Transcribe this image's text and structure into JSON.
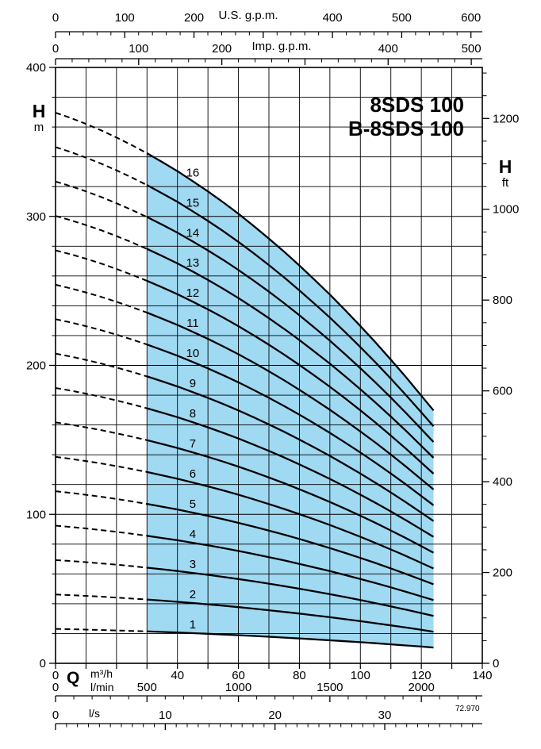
{
  "title": {
    "line1": "8SDS 100",
    "line2": "B-8SDS 100"
  },
  "watermark": "72.970",
  "colors": {
    "region_fill": "#a0d9f2",
    "line": "#000000",
    "background": "#ffffff"
  },
  "labels": {
    "head_symbol": "H",
    "head_unit_m": "m",
    "head_unit_ft": "ft",
    "flow_symbol": "Q",
    "unit_m3h": "m³/h",
    "unit_lmin": "l/min",
    "unit_ls": "l/s",
    "axis_us_gpm": "U.S. g.p.m.",
    "axis_imp_gpm": "Imp. g.p.m."
  },
  "chart_data": {
    "type": "line",
    "title": "8SDS 100 / B-8SDS 100 submersible pump performance curves",
    "x_axis": {
      "label": "Q",
      "unit": "m³/h",
      "min": 0,
      "max": 140,
      "grid_step": 10,
      "tick_step": 10,
      "labeled_ticks": [
        0,
        40,
        60,
        80,
        100,
        120,
        140
      ]
    },
    "y_axis": {
      "label": "H",
      "unit": "m",
      "min": 0,
      "max": 400,
      "grid_step": 20,
      "major_step": 100,
      "labeled_ticks": [
        0,
        100,
        200,
        300,
        400
      ]
    },
    "right_axis": {
      "label": "H",
      "unit": "ft",
      "m_per_ft": 0.3048,
      "minor_step": 50,
      "major_step": 200,
      "max": 1300,
      "labeled_ticks": [
        0,
        200,
        400,
        600,
        800,
        1000,
        1200
      ]
    },
    "top_axis_us_gpm": {
      "unit": "U.S. g.p.m.",
      "m3h_per_unit": 0.22712,
      "minor_step": 20,
      "major_step": 100,
      "max": 620,
      "labeled_ticks": [
        0,
        100,
        200,
        400,
        500,
        600
      ]
    },
    "top_axis_imp_gpm": {
      "unit": "Imp. g.p.m.",
      "m3h_per_unit": 0.27277,
      "minor_step": 20,
      "major_step": 100,
      "max": 510,
      "labeled_ticks": [
        0,
        100,
        200,
        400,
        500
      ]
    },
    "bottom_axis_lmin": {
      "unit": "l/min",
      "m3h_per_unit": 0.06,
      "minor_step": 100,
      "major_step": 500,
      "max": 2300,
      "labeled_ticks": [
        0,
        500,
        1000,
        1500,
        2000
      ]
    },
    "bottom_axis_ls": {
      "unit": "l/s",
      "m3h_per_unit": 3.6,
      "minor_step": 1,
      "major_step": 10,
      "max": 38,
      "labeled_ticks": [
        0,
        10,
        20,
        30
      ]
    },
    "series_rule": "head_m(stage n, Q) = n × base_curve.head_m(Q); solid inside operating region, dashed extension toward Q=0",
    "stages": [
      1,
      2,
      3,
      4,
      5,
      6,
      7,
      8,
      9,
      10,
      11,
      12,
      13,
      14,
      15,
      16
    ],
    "base_curve": {
      "q_m3h": [
        0,
        5,
        10,
        15,
        20,
        25,
        30,
        35,
        40,
        45,
        50,
        55,
        60,
        65,
        70,
        75,
        80,
        85,
        90,
        95,
        100,
        105,
        110,
        115,
        120,
        124
      ],
      "head_m": [
        23.1,
        22.88,
        22.63,
        22.36,
        22.06,
        21.74,
        21.4,
        21.03,
        20.65,
        20.23,
        19.8,
        19.34,
        18.86,
        18.35,
        17.82,
        17.27,
        16.69,
        16.09,
        15.47,
        14.82,
        14.15,
        13.46,
        12.74,
        12.0,
        11.23,
        10.61
      ],
      "solid_q_range": [
        30,
        124
      ],
      "dashed_q_range": [
        0,
        30
      ]
    },
    "operating_region": {
      "q_min_m3h": 30,
      "q_max_m3h": 124,
      "stage_min": 1,
      "stage_max": 16
    },
    "curve_label_q_m3h": 45
  }
}
